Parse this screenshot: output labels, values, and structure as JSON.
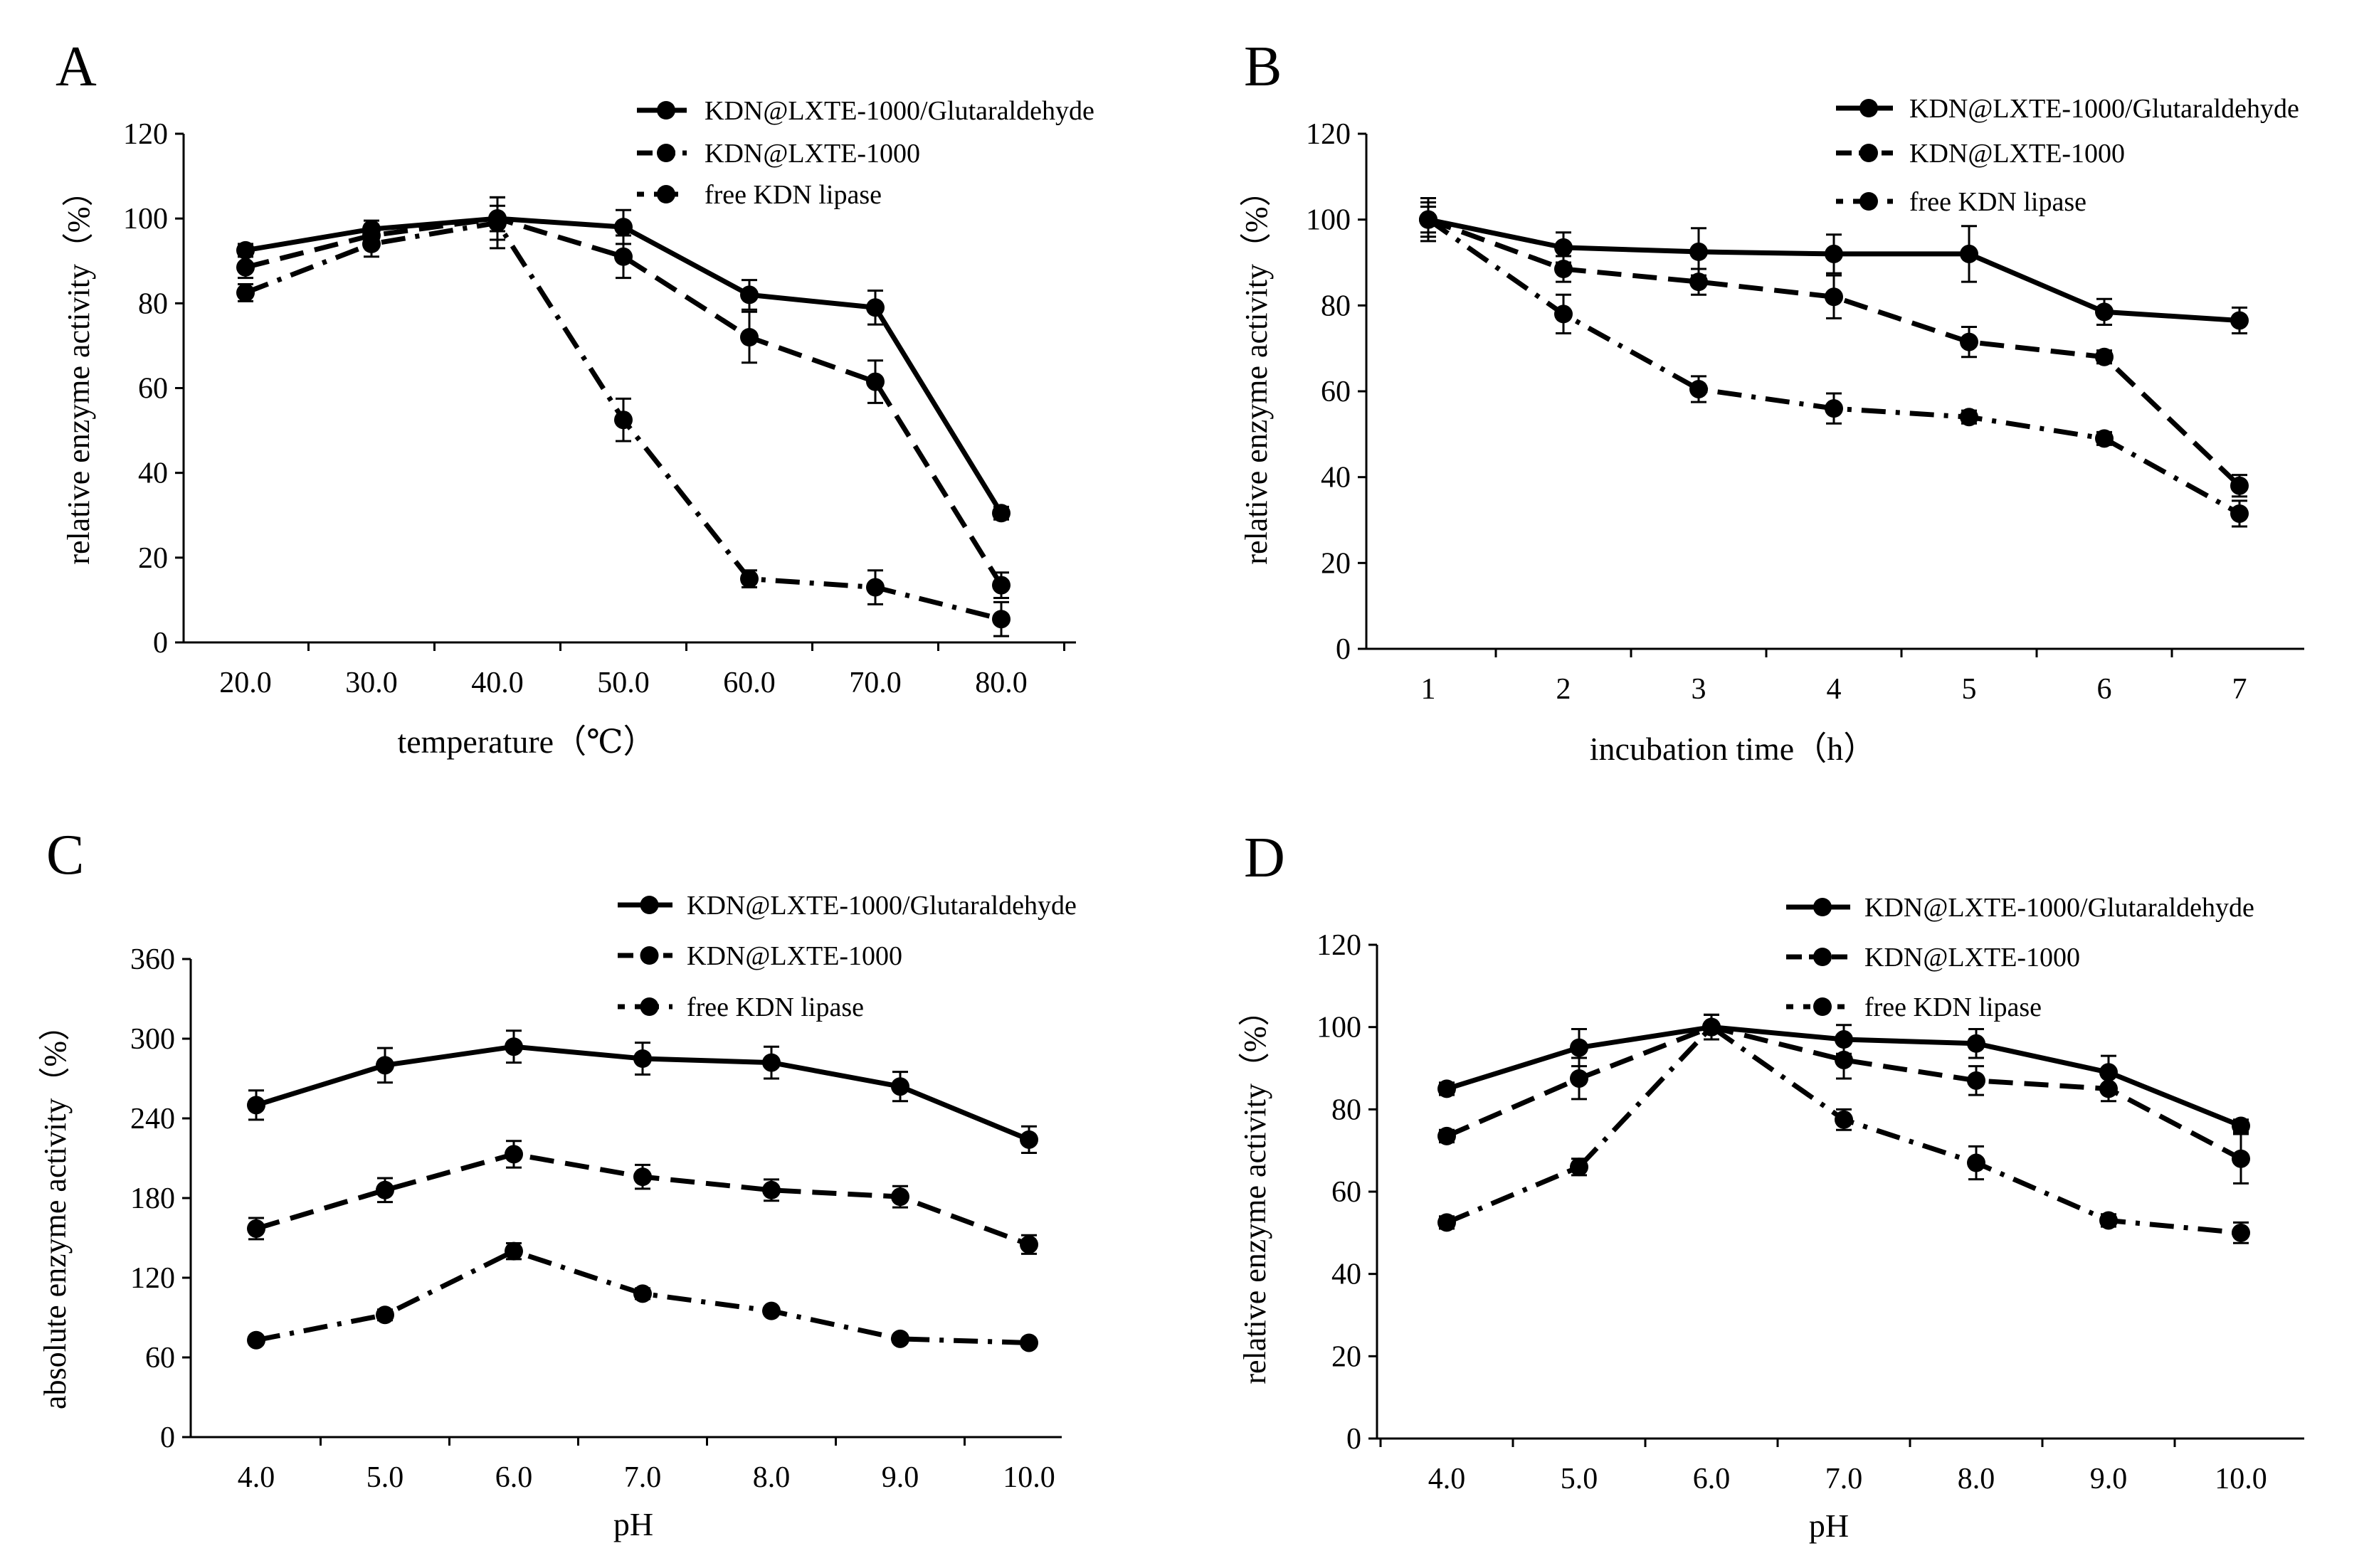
{
  "figure": {
    "description_label": "Enzyme activity panels A-D"
  },
  "legend_labels": [
    "KDN@LXTE-1000/Glutaraldehyde",
    "KDN@LXTE-1000",
    "free KDN lipase"
  ],
  "chart_data": [
    {
      "panel": "A",
      "type": "line",
      "xlabel": "temperature（℃）",
      "ylabel": "relative enzyme activity（%）",
      "categories": [
        "20.0",
        "30.0",
        "40.0",
        "50.0",
        "60.0",
        "70.0",
        "80.0"
      ],
      "yticks": [
        "0",
        "20",
        "40",
        "60",
        "80",
        "100",
        "120"
      ],
      "ylim": [
        0,
        120
      ],
      "series": [
        {
          "name": "KDN@LXTE-1000/Glutaraldehyde",
          "style": "solid",
          "values": [
            92.5,
            97.5,
            100,
            98,
            82,
            79,
            30.5
          ],
          "errors": [
            1.5,
            2,
            5,
            4,
            3.5,
            4,
            1.5
          ]
        },
        {
          "name": "KDN@LXTE-1000",
          "style": "dash",
          "values": [
            88.5,
            96,
            100,
            91,
            72,
            61.5,
            13.5
          ],
          "errors": [
            2.5,
            2.5,
            3,
            5,
            6,
            5,
            3
          ]
        },
        {
          "name": "free KDN lipase",
          "style": "dashdot",
          "values": [
            82.5,
            94,
            99,
            52.5,
            15,
            13,
            5.5
          ],
          "errors": [
            2,
            3,
            6,
            5,
            2,
            4,
            4
          ]
        }
      ]
    },
    {
      "panel": "B",
      "type": "line",
      "xlabel": "incubation time（h）",
      "ylabel": "relative enzyme activity（%）",
      "categories": [
        "1",
        "2",
        "3",
        "4",
        "5",
        "6",
        "7"
      ],
      "yticks": [
        "0",
        "20",
        "40",
        "60",
        "80",
        "100",
        "120"
      ],
      "ylim": [
        0,
        120
      ],
      "series": [
        {
          "name": "KDN@LXTE-1000/Glutaraldehyde",
          "style": "solid",
          "values": [
            100,
            93.5,
            92.5,
            92,
            92,
            78.5,
            76.5
          ],
          "errors": [
            3,
            3.5,
            5.5,
            4.5,
            6.5,
            3,
            3
          ]
        },
        {
          "name": "KDN@LXTE-1000",
          "style": "dash",
          "values": [
            100,
            88.5,
            85.5,
            82,
            71.5,
            68,
            38
          ],
          "errors": [
            4,
            3,
            3,
            5,
            3.5,
            1.5,
            2.5
          ]
        },
        {
          "name": "free KDN lipase",
          "style": "dashdot",
          "values": [
            100,
            78,
            60.5,
            56,
            54,
            49,
            31.5
          ],
          "errors": [
            5,
            4.5,
            3,
            3.5,
            1.5,
            1.5,
            3
          ]
        }
      ]
    },
    {
      "panel": "C",
      "type": "line",
      "xlabel": "pH",
      "ylabel": "absolute enzyme activity（%）",
      "categories": [
        "4.0",
        "5.0",
        "6.0",
        "7.0",
        "8.0",
        "9.0",
        "10.0"
      ],
      "yticks": [
        "0",
        "60",
        "120",
        "180",
        "240",
        "300",
        "360"
      ],
      "ylim": [
        0,
        360
      ],
      "series": [
        {
          "name": "KDN@LXTE-1000/Glutaraldehyde",
          "style": "solid",
          "values": [
            250,
            280,
            294,
            285,
            282,
            264,
            224
          ],
          "errors": [
            11,
            13,
            12,
            12,
            12,
            11,
            10
          ]
        },
        {
          "name": "KDN@LXTE-1000",
          "style": "dash",
          "values": [
            157,
            186,
            213,
            196,
            186,
            181,
            145
          ],
          "errors": [
            8,
            9,
            10,
            9,
            8,
            8,
            7
          ]
        },
        {
          "name": "free KDN lipase",
          "style": "dashdot",
          "values": [
            73,
            92,
            140,
            108,
            95,
            74,
            71
          ],
          "errors": [
            3,
            4,
            6,
            4,
            3,
            3,
            3
          ]
        }
      ]
    },
    {
      "panel": "D",
      "type": "line",
      "xlabel": "pH",
      "ylabel": "relative enzyme activity（%）",
      "categories": [
        "4.0",
        "5.0",
        "6.0",
        "7.0",
        "8.0",
        "9.0",
        "10.0"
      ],
      "yticks": [
        "0",
        "20",
        "40",
        "60",
        "80",
        "100",
        "120"
      ],
      "ylim": [
        0,
        120
      ],
      "series": [
        {
          "name": "KDN@LXTE-1000/Glutaraldehyde",
          "style": "solid",
          "values": [
            85,
            95,
            100,
            97,
            96,
            89,
            76
          ],
          "errors": [
            1.5,
            4.5,
            3,
            3.5,
            3.5,
            4,
            1.5
          ]
        },
        {
          "name": "KDN@LXTE-1000",
          "style": "dash",
          "values": [
            73.5,
            87.5,
            100,
            92,
            87,
            85,
            68
          ],
          "errors": [
            1.5,
            5,
            3,
            4.5,
            3.5,
            3,
            6
          ]
        },
        {
          "name": "free KDN lipase",
          "style": "dashdot",
          "values": [
            52.5,
            66,
            100,
            77.5,
            67,
            53,
            50
          ],
          "errors": [
            1.5,
            2,
            3,
            2.5,
            4,
            1.5,
            2.5
          ]
        }
      ]
    }
  ]
}
